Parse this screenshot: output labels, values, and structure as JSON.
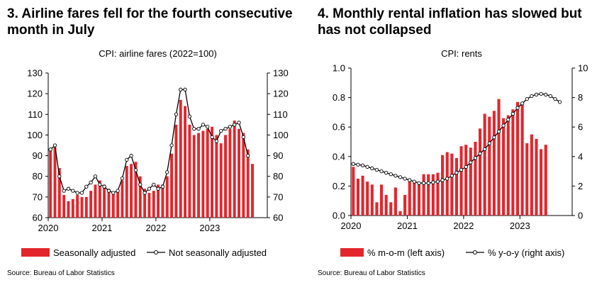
{
  "chart_data": [
    {
      "type": "bar",
      "title": "3. Airline fares fell for the fourth consecutive month in July",
      "subtitle": "CPI: airline fares (2022=100)",
      "xlabel": "",
      "ylabel": "",
      "ylim": [
        60,
        130
      ],
      "yticks": [
        "130",
        "120",
        "110",
        "100",
        "90",
        "80",
        "70",
        "60"
      ],
      "y2ticks": [
        "130",
        "120",
        "110",
        "100",
        "90",
        "80",
        "70",
        "60"
      ],
      "xticks": [
        "2020",
        "2021",
        "2022",
        "2023"
      ],
      "x_start": "2020-01",
      "grid": false,
      "legend": "bottom",
      "source": "Source: Bureau of Labor Statistics",
      "series": [
        {
          "name": "Seasonally adjusted",
          "type": "bar",
          "axis": "left",
          "color": "#e3262c",
          "values": [
            93,
            94,
            84,
            71,
            68,
            69,
            71,
            70,
            70,
            73,
            76,
            78,
            76,
            74,
            72,
            73,
            78,
            85,
            86,
            87,
            80,
            74,
            72,
            73,
            76,
            76,
            80,
            91,
            105,
            117,
            114,
            105,
            100,
            101,
            102,
            103,
            104,
            100,
            96,
            100,
            103,
            107,
            103,
            101,
            93,
            86
          ]
        },
        {
          "name": "Not seasonally adjusted",
          "type": "line",
          "axis": "left",
          "color": "#000000",
          "values": [
            93,
            95,
            80,
            73,
            74,
            73,
            72,
            72,
            75,
            77,
            80,
            76,
            75,
            73,
            72,
            73,
            79,
            88,
            90,
            83,
            76,
            72,
            74,
            76,
            74,
            75,
            82,
            95,
            110,
            122,
            122,
            109,
            103,
            103,
            105,
            104,
            99,
            97,
            102,
            103,
            104,
            105,
            106,
            99,
            90
          ]
        }
      ]
    },
    {
      "type": "bar",
      "title": "4. Monthly rental inflation has slowed but has not collapsed",
      "subtitle": "CPI: rents",
      "xlabel": "",
      "ylabel": "",
      "ylim": [
        0,
        1.0
      ],
      "y2lim": [
        0,
        10
      ],
      "yticks": [
        "1.0",
        "0.8",
        "0.6",
        "0.4",
        "0.2",
        "0.0"
      ],
      "y2ticks": [
        "10",
        "8",
        "6",
        "4",
        "2",
        "0"
      ],
      "xticks": [
        "2020",
        "2021",
        "2022",
        "2023"
      ],
      "x_start": "2020-01",
      "grid": false,
      "legend": "bottom",
      "source": "Source: Bureau of Labor Statistics",
      "series": [
        {
          "name": "% m-o-m (left axis)",
          "type": "bar",
          "axis": "left",
          "color": "#e3262c",
          "values": [
            0.33,
            0.25,
            0.27,
            0.23,
            0.21,
            0.09,
            0.21,
            0.14,
            0.09,
            0.19,
            0.03,
            0.14,
            0.23,
            0.23,
            0.22,
            0.28,
            0.28,
            0.28,
            0.29,
            0.41,
            0.43,
            0.42,
            0.39,
            0.47,
            0.48,
            0.46,
            0.5,
            0.59,
            0.69,
            0.67,
            0.71,
            0.79,
            0.66,
            0.68,
            0.72,
            0.77,
            0.76,
            0.49,
            0.55,
            0.52,
            0.45,
            0.48
          ]
        },
        {
          "name": "% y-o-y (right axis)",
          "type": "line",
          "axis": "right",
          "color": "#000000",
          "values": [
            3.5,
            3.45,
            3.4,
            3.3,
            3.2,
            3.1,
            3.0,
            2.9,
            2.8,
            2.7,
            2.6,
            2.5,
            2.4,
            2.3,
            2.2,
            2.2,
            2.2,
            2.25,
            2.3,
            2.4,
            2.5,
            2.7,
            2.9,
            3.1,
            3.3,
            3.6,
            3.9,
            4.2,
            4.5,
            4.9,
            5.3,
            5.7,
            6.1,
            6.5,
            6.9,
            7.3,
            7.6,
            7.9,
            8.1,
            8.2,
            8.25,
            8.2,
            8.1,
            7.9,
            7.7
          ]
        }
      ]
    }
  ]
}
